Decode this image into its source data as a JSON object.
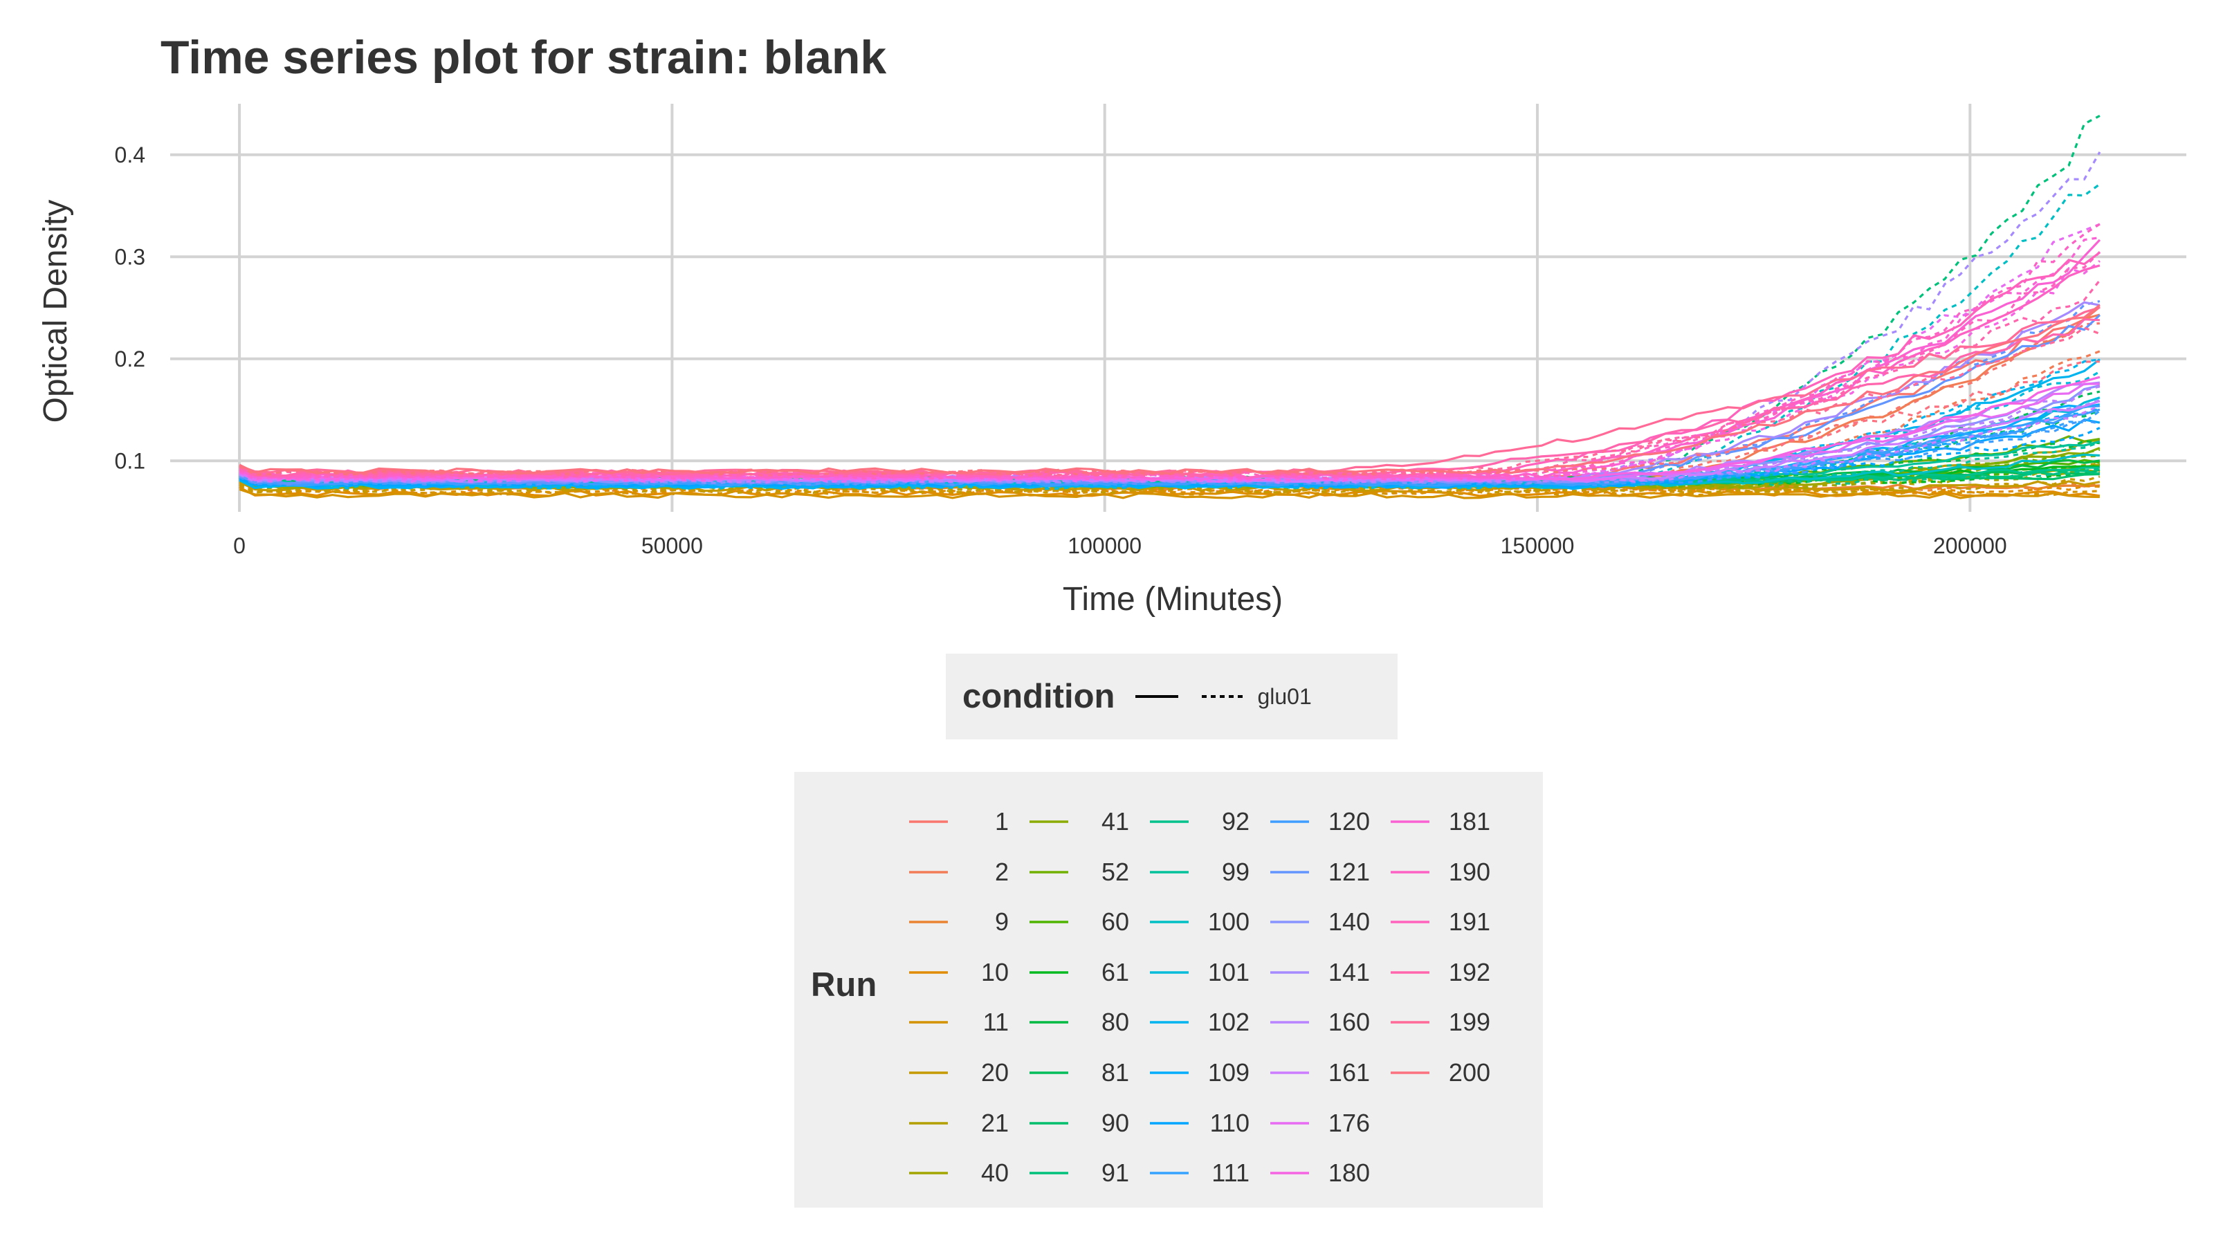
{
  "chart_data": {
    "type": "line",
    "title": "Time series plot for strain: blank",
    "xlabel": "Time (Minutes)",
    "ylabel": "Optical Density",
    "xlim": [
      -8000,
      225000
    ],
    "ylim": [
      0.05,
      0.45
    ],
    "xticks": [
      0,
      50000,
      100000,
      150000,
      200000
    ],
    "xtick_labels": [
      "0",
      "50000",
      "100000",
      "150000",
      "200000"
    ],
    "yticks": [
      0.1,
      0.2,
      0.3,
      0.4
    ],
    "ytick_labels": [
      "0.1",
      "0.2",
      "0.3",
      "0.4"
    ],
    "grid": true,
    "x_end": 215000,
    "series": [
      {
        "name": "1",
        "color": "#F8766D",
        "linetype": "solid",
        "start": 0.082,
        "final": 0.25,
        "rise_start": 150000
      },
      {
        "name": "1",
        "color": "#F8766D",
        "linetype": "dashed",
        "start": 0.08,
        "final": 0.24,
        "rise_start": 155000
      },
      {
        "name": "2",
        "color": "#F27C56",
        "linetype": "solid",
        "start": 0.078,
        "final": 0.24,
        "rise_start": 155000
      },
      {
        "name": "2",
        "color": "#F27C56",
        "linetype": "dashed",
        "start": 0.077,
        "final": 0.21,
        "rise_start": 158000
      },
      {
        "name": "9",
        "color": "#EA8331",
        "linetype": "solid",
        "start": 0.074,
        "final": 0.075,
        "rise_start": 215000
      },
      {
        "name": "9",
        "color": "#EA8331",
        "linetype": "dashed",
        "start": 0.072,
        "final": 0.078,
        "rise_start": 200000
      },
      {
        "name": "10",
        "color": "#E08B00",
        "linetype": "solid",
        "start": 0.068,
        "final": 0.07,
        "rise_start": 215000
      },
      {
        "name": "10",
        "color": "#E08B00",
        "linetype": "dashed",
        "start": 0.07,
        "final": 0.074,
        "rise_start": 200000
      },
      {
        "name": "11",
        "color": "#D49200",
        "linetype": "solid",
        "start": 0.066,
        "final": 0.068,
        "rise_start": 215000
      },
      {
        "name": "11",
        "color": "#D49200",
        "linetype": "dashed",
        "start": 0.069,
        "final": 0.071,
        "rise_start": 215000
      },
      {
        "name": "20",
        "color": "#C59900",
        "linetype": "solid",
        "start": 0.073,
        "final": 0.08,
        "rise_start": 190000
      },
      {
        "name": "20",
        "color": "#C59900",
        "linetype": "dashed",
        "start": 0.071,
        "final": 0.082,
        "rise_start": 185000
      },
      {
        "name": "21",
        "color": "#B49F00",
        "linetype": "solid",
        "start": 0.075,
        "final": 0.12,
        "rise_start": 175000
      },
      {
        "name": "21",
        "color": "#B49F00",
        "linetype": "dashed",
        "start": 0.074,
        "final": 0.1,
        "rise_start": 180000
      },
      {
        "name": "40",
        "color": "#A2A500",
        "linetype": "solid",
        "start": 0.076,
        "final": 0.095,
        "rise_start": 170000
      },
      {
        "name": "40",
        "color": "#A2A500",
        "linetype": "dashed",
        "start": 0.075,
        "final": 0.09,
        "rise_start": 175000
      },
      {
        "name": "41",
        "color": "#8CAB00",
        "linetype": "solid",
        "start": 0.077,
        "final": 0.11,
        "rise_start": 165000
      },
      {
        "name": "41",
        "color": "#8CAB00",
        "linetype": "dashed",
        "start": 0.076,
        "final": 0.105,
        "rise_start": 170000
      },
      {
        "name": "52",
        "color": "#72B000",
        "linetype": "solid",
        "start": 0.078,
        "final": 0.125,
        "rise_start": 160000
      },
      {
        "name": "52",
        "color": "#72B000",
        "linetype": "dashed",
        "start": 0.077,
        "final": 0.11,
        "rise_start": 165000
      },
      {
        "name": "60",
        "color": "#4EB400",
        "linetype": "solid",
        "start": 0.079,
        "final": 0.1,
        "rise_start": 160000
      },
      {
        "name": "60",
        "color": "#4EB400",
        "linetype": "dashed",
        "start": 0.078,
        "final": 0.095,
        "rise_start": 165000
      },
      {
        "name": "61",
        "color": "#00B81F",
        "linetype": "solid",
        "start": 0.08,
        "final": 0.095,
        "rise_start": 160000
      },
      {
        "name": "61",
        "color": "#00B81F",
        "linetype": "dashed",
        "start": 0.079,
        "final": 0.085,
        "rise_start": 170000
      },
      {
        "name": "80",
        "color": "#00BA42",
        "linetype": "solid",
        "start": 0.081,
        "final": 0.1,
        "rise_start": 158000
      },
      {
        "name": "80",
        "color": "#00BA42",
        "linetype": "dashed",
        "start": 0.08,
        "final": 0.12,
        "rise_start": 160000
      },
      {
        "name": "81",
        "color": "#00BC59",
        "linetype": "solid",
        "start": 0.082,
        "final": 0.09,
        "rise_start": 160000
      },
      {
        "name": "81",
        "color": "#00BC59",
        "linetype": "dashed",
        "start": 0.081,
        "final": 0.17,
        "rise_start": 165000
      },
      {
        "name": "90",
        "color": "#00BE6C",
        "linetype": "solid",
        "start": 0.081,
        "final": 0.085,
        "rise_start": 170000
      },
      {
        "name": "90",
        "color": "#00BE6C",
        "linetype": "dashed",
        "start": 0.08,
        "final": 0.15,
        "rise_start": 165000
      },
      {
        "name": "91",
        "color": "#00C17A",
        "linetype": "solid",
        "start": 0.08,
        "final": 0.09,
        "rise_start": 165000
      },
      {
        "name": "91",
        "color": "#00C17A",
        "linetype": "dashed",
        "start": 0.079,
        "final": 0.435,
        "rise_start": 155000
      },
      {
        "name": "92",
        "color": "#00C08B",
        "linetype": "solid",
        "start": 0.079,
        "final": 0.095,
        "rise_start": 165000
      },
      {
        "name": "92",
        "color": "#00C08B",
        "linetype": "dashed",
        "start": 0.078,
        "final": 0.09,
        "rise_start": 170000
      },
      {
        "name": "99",
        "color": "#00C19A",
        "linetype": "solid",
        "start": 0.078,
        "final": 0.12,
        "rise_start": 160000
      },
      {
        "name": "99",
        "color": "#00C19A",
        "linetype": "dashed",
        "start": 0.077,
        "final": 0.115,
        "rise_start": 165000
      },
      {
        "name": "100",
        "color": "#00BFC4",
        "linetype": "solid",
        "start": 0.077,
        "final": 0.105,
        "rise_start": 160000
      },
      {
        "name": "100",
        "color": "#00BFC4",
        "linetype": "dashed",
        "start": 0.076,
        "final": 0.38,
        "rise_start": 155000
      },
      {
        "name": "101",
        "color": "#00BBDA",
        "linetype": "solid",
        "start": 0.076,
        "final": 0.16,
        "rise_start": 158000
      },
      {
        "name": "101",
        "color": "#00BBDA",
        "linetype": "dashed",
        "start": 0.075,
        "final": 0.19,
        "rise_start": 155000
      },
      {
        "name": "102",
        "color": "#00B4EF",
        "linetype": "solid",
        "start": 0.075,
        "final": 0.195,
        "rise_start": 155000
      },
      {
        "name": "102",
        "color": "#00B4EF",
        "linetype": "dashed",
        "start": 0.076,
        "final": 0.2,
        "rise_start": 155000
      },
      {
        "name": "109",
        "color": "#00ACFC",
        "linetype": "solid",
        "start": 0.076,
        "final": 0.16,
        "rise_start": 155000
      },
      {
        "name": "109",
        "color": "#00ACFC",
        "linetype": "dashed",
        "start": 0.077,
        "final": 0.15,
        "rise_start": 160000
      },
      {
        "name": "110",
        "color": "#00A5FF",
        "linetype": "solid",
        "start": 0.077,
        "final": 0.14,
        "rise_start": 158000
      },
      {
        "name": "110",
        "color": "#00A5FF",
        "linetype": "dashed",
        "start": 0.078,
        "final": 0.13,
        "rise_start": 160000
      },
      {
        "name": "111",
        "color": "#35A2FF",
        "linetype": "solid",
        "start": 0.078,
        "final": 0.155,
        "rise_start": 156000
      },
      {
        "name": "111",
        "color": "#35A2FF",
        "linetype": "dashed",
        "start": 0.079,
        "final": 0.145,
        "rise_start": 158000
      },
      {
        "name": "120",
        "color": "#3F9DFF",
        "linetype": "solid",
        "start": 0.079,
        "final": 0.15,
        "rise_start": 158000
      },
      {
        "name": "120",
        "color": "#3F9DFF",
        "linetype": "dashed",
        "start": 0.078,
        "final": 0.14,
        "rise_start": 160000
      },
      {
        "name": "121",
        "color": "#6395FF",
        "linetype": "solid",
        "start": 0.08,
        "final": 0.24,
        "rise_start": 150000
      },
      {
        "name": "121",
        "color": "#6395FF",
        "linetype": "dashed",
        "start": 0.079,
        "final": 0.26,
        "rise_start": 152000
      },
      {
        "name": "140",
        "color": "#8894FF",
        "linetype": "solid",
        "start": 0.081,
        "final": 0.17,
        "rise_start": 155000
      },
      {
        "name": "140",
        "color": "#8894FF",
        "linetype": "dashed",
        "start": 0.08,
        "final": 0.16,
        "rise_start": 158000
      },
      {
        "name": "141",
        "color": "#A58AFF",
        "linetype": "solid",
        "start": 0.082,
        "final": 0.26,
        "rise_start": 150000
      },
      {
        "name": "141",
        "color": "#A58AFF",
        "linetype": "dashed",
        "start": 0.081,
        "final": 0.4,
        "rise_start": 152000
      },
      {
        "name": "160",
        "color": "#B983FF",
        "linetype": "solid",
        "start": 0.083,
        "final": 0.18,
        "rise_start": 155000
      },
      {
        "name": "160",
        "color": "#B983FF",
        "linetype": "dashed",
        "start": 0.082,
        "final": 0.17,
        "rise_start": 158000
      },
      {
        "name": "161",
        "color": "#CC7DFF",
        "linetype": "solid",
        "start": 0.082,
        "final": 0.16,
        "rise_start": 158000
      },
      {
        "name": "161",
        "color": "#CC7DFF",
        "linetype": "dashed",
        "start": 0.081,
        "final": 0.15,
        "rise_start": 160000
      },
      {
        "name": "176",
        "color": "#E76BF3",
        "linetype": "solid",
        "start": 0.083,
        "final": 0.175,
        "rise_start": 156000
      },
      {
        "name": "176",
        "color": "#E76BF3",
        "linetype": "dashed",
        "start": 0.082,
        "final": 0.34,
        "rise_start": 150000
      },
      {
        "name": "180",
        "color": "#F564E3",
        "linetype": "solid",
        "start": 0.084,
        "final": 0.18,
        "rise_start": 155000
      },
      {
        "name": "180",
        "color": "#F564E3",
        "linetype": "dashed",
        "start": 0.083,
        "final": 0.3,
        "rise_start": 150000
      },
      {
        "name": "181",
        "color": "#FA62D4",
        "linetype": "solid",
        "start": 0.085,
        "final": 0.31,
        "rise_start": 148000
      },
      {
        "name": "181",
        "color": "#FA62D4",
        "linetype": "dashed",
        "start": 0.084,
        "final": 0.32,
        "rise_start": 150000
      },
      {
        "name": "190",
        "color": "#FD61C4",
        "linetype": "solid",
        "start": 0.086,
        "final": 0.3,
        "rise_start": 145000
      },
      {
        "name": "190",
        "color": "#FD61C4",
        "linetype": "dashed",
        "start": 0.085,
        "final": 0.33,
        "rise_start": 148000
      },
      {
        "name": "191",
        "color": "#FF62BC",
        "linetype": "solid",
        "start": 0.087,
        "final": 0.31,
        "rise_start": 140000
      },
      {
        "name": "191",
        "color": "#FF62BC",
        "linetype": "dashed",
        "start": 0.086,
        "final": 0.3,
        "rise_start": 145000
      },
      {
        "name": "192",
        "color": "#FF65AC",
        "linetype": "solid",
        "start": 0.088,
        "final": 0.24,
        "rise_start": 130000
      },
      {
        "name": "192",
        "color": "#FF65AC",
        "linetype": "dashed",
        "start": 0.087,
        "final": 0.27,
        "rise_start": 140000
      },
      {
        "name": "199",
        "color": "#FF6A98",
        "linetype": "solid",
        "start": 0.089,
        "final": 0.25,
        "rise_start": 120000
      },
      {
        "name": "199",
        "color": "#FF6A98",
        "linetype": "dashed",
        "start": 0.088,
        "final": 0.23,
        "rise_start": 135000
      },
      {
        "name": "200",
        "color": "#FC717F",
        "linetype": "solid",
        "start": 0.09,
        "final": 0.25,
        "rise_start": 145000
      },
      {
        "name": "200",
        "color": "#FC717F",
        "linetype": "dashed",
        "start": 0.089,
        "final": 0.2,
        "rise_start": 150000
      }
    ]
  },
  "legend_condition": {
    "title": "condition",
    "keys": [
      {
        "linetype": "solid",
        "label": ""
      },
      {
        "linetype": "dashed",
        "label": "glu01"
      }
    ]
  },
  "legend_run": {
    "title": "Run",
    "columns": [
      [
        {
          "label": "1",
          "color": "#F8766D"
        },
        {
          "label": "2",
          "color": "#F27C56"
        },
        {
          "label": "9",
          "color": "#EA8331"
        },
        {
          "label": "10",
          "color": "#E08B00"
        },
        {
          "label": "11",
          "color": "#D49200"
        },
        {
          "label": "20",
          "color": "#C59900"
        },
        {
          "label": "21",
          "color": "#B49F00"
        },
        {
          "label": "40",
          "color": "#A2A500"
        }
      ],
      [
        {
          "label": "41",
          "color": "#8CAB00"
        },
        {
          "label": "52",
          "color": "#72B000"
        },
        {
          "label": "60",
          "color": "#4EB400"
        },
        {
          "label": "61",
          "color": "#00B81F"
        },
        {
          "label": "80",
          "color": "#00BA42"
        },
        {
          "label": "81",
          "color": "#00BC59"
        },
        {
          "label": "90",
          "color": "#00BE6C"
        },
        {
          "label": "91",
          "color": "#00C17A"
        }
      ],
      [
        {
          "label": "92",
          "color": "#00C08B"
        },
        {
          "label": "99",
          "color": "#00C19A"
        },
        {
          "label": "100",
          "color": "#00BFC4"
        },
        {
          "label": "101",
          "color": "#00BBDA"
        },
        {
          "label": "102",
          "color": "#00B4EF"
        },
        {
          "label": "109",
          "color": "#00ACFC"
        },
        {
          "label": "110",
          "color": "#00A5FF"
        },
        {
          "label": "111",
          "color": "#35A2FF"
        }
      ],
      [
        {
          "label": "120",
          "color": "#3F9DFF"
        },
        {
          "label": "121",
          "color": "#6395FF"
        },
        {
          "label": "140",
          "color": "#8894FF"
        },
        {
          "label": "141",
          "color": "#A58AFF"
        },
        {
          "label": "160",
          "color": "#B983FF"
        },
        {
          "label": "161",
          "color": "#CC7DFF"
        },
        {
          "label": "176",
          "color": "#E76BF3"
        },
        {
          "label": "180",
          "color": "#F564E3"
        }
      ],
      [
        {
          "label": "181",
          "color": "#FA62D4"
        },
        {
          "label": "190",
          "color": "#FD61C4"
        },
        {
          "label": "191",
          "color": "#FF62BC"
        },
        {
          "label": "192",
          "color": "#FF65AC"
        },
        {
          "label": "199",
          "color": "#FF6A98"
        },
        {
          "label": "200",
          "color": "#FC717F"
        }
      ]
    ]
  }
}
